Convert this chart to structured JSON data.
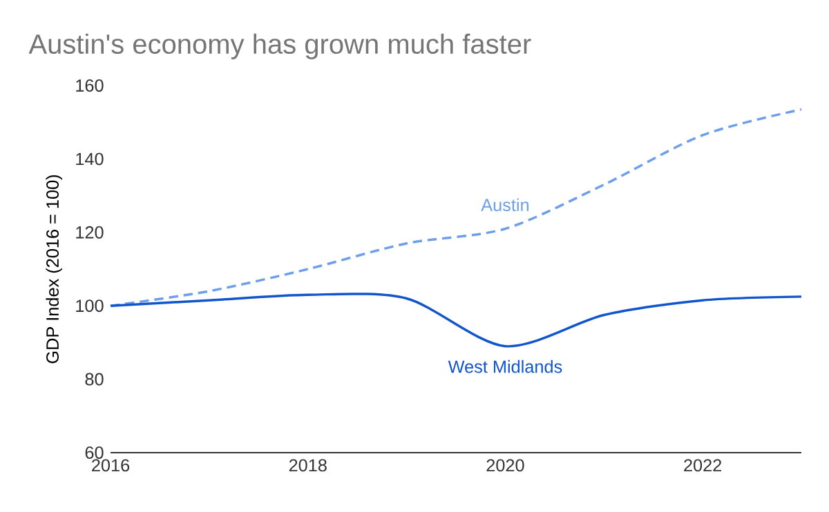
{
  "chart_data": {
    "type": "line",
    "title": "Austin's economy has grown much faster",
    "ylabel": "GDP Index (2016 = 100)",
    "x": [
      2016,
      2017,
      2018,
      2019,
      2020,
      2021,
      2022,
      2023
    ],
    "series": [
      {
        "name": "Austin",
        "color": "#6d9eeb",
        "line_style": "dashed",
        "values": [
          100,
          104,
          110,
          117,
          121,
          133,
          146.5,
          153.5
        ]
      },
      {
        "name": "West Midlands",
        "color": "#1155cc",
        "line_style": "solid",
        "values": [
          100,
          101.5,
          103,
          102,
          89,
          97.5,
          101.5,
          102.5
        ]
      }
    ],
    "xlim": [
      2016,
      2023
    ],
    "xticks": [
      2016,
      2018,
      2020,
      2022
    ],
    "ylim": [
      60,
      160
    ],
    "yticks": [
      60,
      80,
      100,
      120,
      140,
      160
    ],
    "grid": false,
    "legend": false,
    "marker": "none"
  }
}
